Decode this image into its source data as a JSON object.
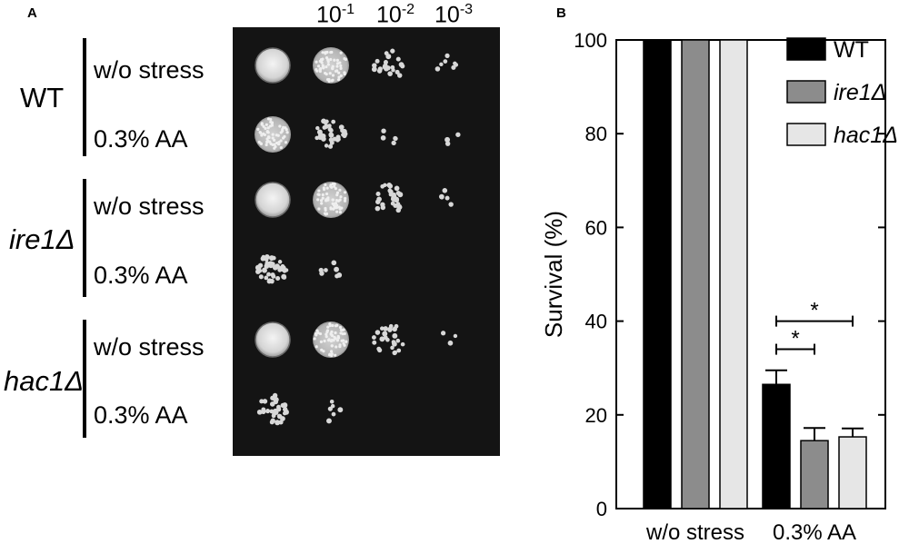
{
  "panel_a": {
    "label": "A",
    "dilutions": [
      {
        "base": "10",
        "exp": "-1"
      },
      {
        "base": "10",
        "exp": "-2"
      },
      {
        "base": "10",
        "exp": "-3"
      }
    ],
    "strains": [
      {
        "name": "WT",
        "italic": false,
        "conditions": [
          "w/o stress",
          "0.3% AA"
        ]
      },
      {
        "name": "ire1Δ",
        "italic": true,
        "conditions": [
          "w/o stress",
          "0.3% AA"
        ]
      },
      {
        "name": "hac1Δ",
        "italic": true,
        "conditions": [
          "w/o stress",
          "0.3% AA"
        ]
      }
    ]
  },
  "panel_b": {
    "label": "B"
  },
  "chart_data": {
    "type": "bar",
    "title": "",
    "xlabel": "",
    "ylabel": "Survival (%)",
    "ylim": [
      0,
      100
    ],
    "yticks": [
      0,
      20,
      40,
      60,
      80,
      100
    ],
    "categories": [
      "w/o stress",
      "0.3% AA"
    ],
    "series": [
      {
        "name": "WT",
        "color": "#000000",
        "values": [
          100,
          26.5
        ],
        "errors": [
          0,
          3
        ]
      },
      {
        "name": "ire1Δ",
        "color": "#8c8c8c",
        "values": [
          100,
          14.5
        ],
        "errors": [
          0,
          2.7
        ]
      },
      {
        "name": "hac1Δ",
        "color": "#e6e6e6",
        "values": [
          100,
          15.3
        ],
        "errors": [
          0,
          1.8
        ]
      }
    ],
    "legend_position": "top-right",
    "significance": [
      {
        "category": "0.3% AA",
        "between": [
          "WT",
          "ire1Δ"
        ],
        "y": 34,
        "label": "*"
      },
      {
        "category": "0.3% AA",
        "between": [
          "WT",
          "hac1Δ"
        ],
        "y": 40,
        "label": "*"
      }
    ],
    "grid": false
  }
}
